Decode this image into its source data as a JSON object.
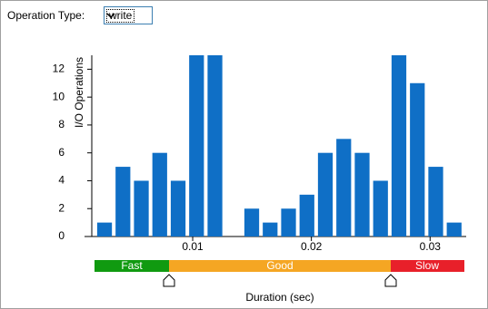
{
  "controls": {
    "operation_type": {
      "label": "Operation Type:",
      "selected": "write"
    }
  },
  "chart_data": {
    "type": "histogram",
    "bins": [
      0.0018,
      0.00335,
      0.0049,
      0.00645,
      0.008,
      0.00955,
      0.0111,
      0.01265,
      0.0142,
      0.01575,
      0.0173,
      0.01885,
      0.0204,
      0.02195,
      0.0235,
      0.02505,
      0.0266,
      0.02815,
      0.0297,
      0.03125,
      0.0328
    ],
    "values": [
      1,
      5,
      4,
      6,
      4,
      13,
      13,
      0,
      2,
      1,
      2,
      3,
      6,
      7,
      6,
      4,
      13,
      11,
      5,
      1
    ],
    "color": "#0f6fc6",
    "xlim": [
      0.0015,
      0.0335
    ],
    "xticks": [
      0.01,
      0.02,
      0.03
    ],
    "ylim": [
      0,
      13
    ],
    "yticks": [
      0,
      2,
      4,
      6,
      8,
      10,
      12
    ],
    "xlabel": "Duration (sec)",
    "ylabel": "I/O Operations"
  },
  "ranges": [
    "Fast",
    "Good",
    "Slow"
  ]
}
